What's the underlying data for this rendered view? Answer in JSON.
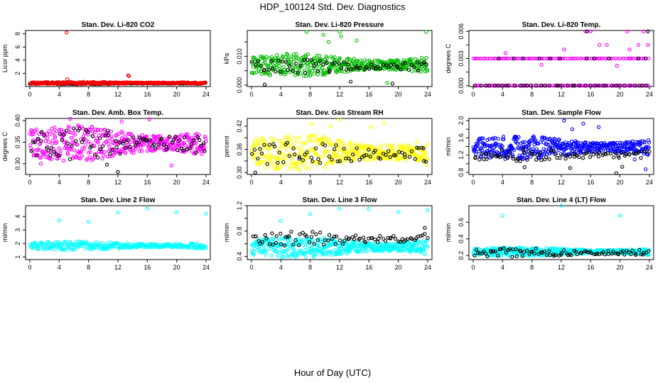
{
  "figure": {
    "title": "HDP_100124  Std. Dev. Diagnostics",
    "xlabel": "Hour of Day (UTC)"
  },
  "chart_data": [
    {
      "type": "scatter",
      "title": "Stan. Dev. Li-820 CO2",
      "ylabel": "Licor ppm",
      "xlim": [
        0,
        24
      ],
      "ylim": [
        0,
        8.5
      ],
      "xticks": [
        0,
        4,
        8,
        12,
        16,
        20,
        24
      ],
      "yticks": [
        2,
        4,
        6,
        8
      ],
      "yticklabels": [
        "2",
        "4",
        "6",
        "8"
      ],
      "series": [
        {
          "name": "black",
          "color": "#000000",
          "band": [
            0.35,
            0.6
          ],
          "n": 180,
          "x": [],
          "y": []
        },
        {
          "name": "red",
          "color": "#ff0000",
          "band": [
            0.35,
            0.75
          ],
          "n": 220,
          "x": [
            5.0,
            5.1,
            13.4,
            13.5
          ],
          "y": [
            8.2,
            1.1,
            1.7,
            1.6
          ]
        }
      ]
    },
    {
      "type": "scatter",
      "title": "Stan. Dev. Li-820 Pressure",
      "ylabel": "kPa",
      "xlim": [
        0,
        24
      ],
      "ylim": [
        -0.0005,
        0.019
      ],
      "xticks": [
        0,
        4,
        8,
        12,
        16,
        20,
        24
      ],
      "yticks": [
        0.0,
        0.005,
        0.01,
        0.015
      ],
      "yticklabels": [
        "0.000",
        "",
        "0.010",
        ""
      ],
      "series": [
        {
          "name": "green",
          "color": "#00bb00",
          "band": [
            0.003,
            0.011
          ],
          "n": 420,
          "x": [
            7.5,
            9.8,
            12.0,
            12.2,
            23.8,
            10.5,
            14.3,
            18.5
          ],
          "y": [
            0.0185,
            0.0175,
            0.0185,
            0.017,
            0.0185,
            0.015,
            0.0155,
            0.0008
          ]
        },
        {
          "name": "black",
          "color": "#000000",
          "band": [
            0.004,
            0.009
          ],
          "n": 70,
          "x": [
            1.8,
            13.5,
            19.2
          ],
          "y": [
            0.0002,
            0.0012,
            0.0005
          ]
        }
      ]
    },
    {
      "type": "scatter",
      "title": "Stan. Dev. Li-820 Temp.",
      "ylabel": "degrees C",
      "xlim": [
        0,
        24
      ],
      "ylim": [
        -0.0001,
        0.0061
      ],
      "xticks": [
        0,
        4,
        8,
        12,
        16,
        20,
        24
      ],
      "yticks": [
        0.0,
        0.0015,
        0.003,
        0.0045,
        0.006
      ],
      "yticklabels": [
        "0.000",
        "",
        "0.003",
        "",
        "0.006"
      ],
      "levels": [
        0.0,
        0.003,
        0.006
      ],
      "series": [
        {
          "name": "magenta-low",
          "color": "#ff00ff",
          "level": 0.0,
          "n": 90,
          "x": [],
          "y": []
        },
        {
          "name": "magenta-mid",
          "color": "#ff00ff",
          "level": 0.003,
          "n": 95,
          "x": [],
          "y": []
        },
        {
          "name": "magenta-high",
          "color": "#ff00ff",
          "x": [
            15.3,
            16.0,
            17.2,
            18.2,
            21.0,
            22.5,
            23.2,
            23.8,
            4.4,
            9.3,
            19.6,
            12.4,
            21.3
          ],
          "y": [
            0.006,
            0.006,
            0.0045,
            0.0045,
            0.006,
            0.0045,
            0.006,
            0.0045,
            0.0036,
            0.0023,
            0.0022,
            0.004,
            0.004
          ]
        },
        {
          "name": "black-low",
          "color": "#000000",
          "level": 0.0,
          "n": 40,
          "x": [],
          "y": []
        },
        {
          "name": "black-mid",
          "color": "#000000",
          "x": [
            3.5,
            5.5,
            6.8,
            9.0,
            10.5,
            11.8,
            15.5,
            16.5,
            18.5,
            22.5,
            23.5
          ],
          "y": [
            0.003,
            0.003,
            0.003,
            0.003,
            0.003,
            0.003,
            0.003,
            0.003,
            0.003,
            0.003,
            0.003
          ]
        },
        {
          "name": "black-high",
          "color": "#000000",
          "x": [
            15.5,
            23.8
          ],
          "y": [
            0.006,
            0.006
          ]
        }
      ]
    },
    {
      "type": "scatter",
      "title": "Stan. Dev. Amb. Box Temp.",
      "ylabel": "degrees C",
      "xlim": [
        0,
        24
      ],
      "ylim": [
        0.275,
        0.405
      ],
      "xticks": [
        0,
        4,
        8,
        12,
        16,
        20,
        24
      ],
      "yticks": [
        0.3,
        0.35,
        0.4
      ],
      "yticklabels": [
        "0.30",
        "0.35",
        "0.40"
      ],
      "series": [
        {
          "name": "magenta",
          "color": "#ff00ff",
          "band": [
            0.305,
            0.39
          ],
          "n": 420,
          "x": [
            5.5,
            12.5,
            16.3,
            1.5,
            19.3
          ],
          "y": [
            0.404,
            0.398,
            0.403,
            0.3,
            0.296
          ]
        },
        {
          "name": "black",
          "color": "#000000",
          "band": [
            0.31,
            0.385
          ],
          "n": 90,
          "x": [
            12.0,
            10.5
          ],
          "y": [
            0.281,
            0.298
          ]
        }
      ]
    },
    {
      "type": "scatter",
      "title": "Stan. Dev. Gas Stream RH",
      "ylabel": "percent",
      "xlim": [
        0,
        24
      ],
      "ylim": [
        0.295,
        0.44
      ],
      "xticks": [
        0,
        4,
        8,
        12,
        16,
        20,
        24
      ],
      "yticks": [
        0.3,
        0.33,
        0.36,
        0.39,
        0.42
      ],
      "yticklabels": [
        "0.30",
        "",
        "0.36",
        "",
        "0.42"
      ],
      "series": [
        {
          "name": "yellow",
          "color": "#ffff00",
          "band": [
            0.305,
            0.4
          ],
          "n": 420,
          "x": [
            12.0,
            8.2,
            10.8,
            16.3,
            18.0
          ],
          "y": [
            0.438,
            0.425,
            0.42,
            0.418,
            0.428
          ]
        },
        {
          "name": "black",
          "color": "#000000",
          "band": [
            0.315,
            0.38
          ],
          "n": 70,
          "x": [
            0.5,
            23.5
          ],
          "y": [
            0.3,
            0.33
          ]
        }
      ]
    },
    {
      "type": "scatter",
      "title": "Stan. Dev. Sample Flow",
      "ylabel": "ml/min",
      "xlim": [
        0,
        24
      ],
      "ylim": [
        0.75,
        2.05
      ],
      "xticks": [
        0,
        4,
        8,
        12,
        16,
        20,
        24
      ],
      "yticks": [
        0.8,
        1.0,
        1.2,
        1.4,
        1.6,
        1.8,
        2.0
      ],
      "yticklabels": [
        "0.8",
        "",
        "1.2",
        "",
        "1.6",
        "",
        "2.0"
      ],
      "series": [
        {
          "name": "blue",
          "color": "#0000ff",
          "band": [
            1.1,
            1.65
          ],
          "n": 460,
          "x": [
            12.4,
            15.0,
            13.5,
            17.1,
            23.5,
            22.0
          ],
          "y": [
            2.0,
            1.93,
            1.8,
            1.85,
            0.87,
            1.1
          ]
        },
        {
          "name": "black",
          "color": "#000000",
          "band": [
            1.05,
            1.35
          ],
          "n": 80,
          "x": [
            7.0,
            13.2,
            19.5,
            20.3
          ],
          "y": [
            0.92,
            0.9,
            0.78,
            0.93
          ]
        }
      ]
    },
    {
      "type": "scatter",
      "title": "Stan. Dev. Line 2 Flow",
      "ylabel": "ml/min",
      "xlim": [
        0,
        24
      ],
      "ylim": [
        0.8,
        4.8
      ],
      "xticks": [
        0,
        4,
        8,
        12,
        16,
        20,
        24
      ],
      "yticks": [
        1,
        2,
        3,
        4
      ],
      "yticklabels": [
        "1",
        "2",
        "3",
        "4"
      ],
      "series": [
        {
          "name": "cyan-upper",
          "color": "#00ffff",
          "band": [
            1.5,
            2.15
          ],
          "n": 300,
          "x": [
            4.0,
            8.0,
            12.0,
            16.0,
            20.0,
            24.0
          ],
          "y": [
            3.7,
            3.6,
            4.3,
            4.6,
            4.3,
            4.2
          ]
        },
        {
          "name": "cyan-lower",
          "color": "#00ffff",
          "band": [
            0.52,
            0.72
          ],
          "n": 200,
          "x": [],
          "y": []
        },
        {
          "name": "black",
          "color": "#000000",
          "band": [
            0.52,
            0.72
          ],
          "n": 110,
          "x": [],
          "y": []
        }
      ]
    },
    {
      "type": "scatter",
      "title": "Stan. Dev. Line 3 Flow",
      "ylabel": "ml/min",
      "xlim": [
        0,
        24
      ],
      "ylim": [
        0.35,
        1.2
      ],
      "xticks": [
        0,
        4,
        8,
        12,
        16,
        20,
        24
      ],
      "yticks": [
        0.4,
        0.6,
        0.8,
        1.0,
        1.2
      ],
      "yticklabels": [
        "0.4",
        "",
        "0.8",
        "",
        "1.2"
      ],
      "series": [
        {
          "name": "cyan",
          "color": "#00ffff",
          "band": [
            0.38,
            0.72
          ],
          "n": 440,
          "x": [
            4.0,
            8.0,
            12.0,
            16.0,
            20.0,
            24.0
          ],
          "y": [
            0.96,
            1.07,
            1.15,
            1.15,
            1.1,
            1.13
          ]
        },
        {
          "name": "black",
          "color": "#000000",
          "band": [
            0.55,
            0.8
          ],
          "n": 85,
          "x": [
            23.6
          ],
          "y": [
            0.85
          ]
        }
      ]
    },
    {
      "type": "scatter",
      "title": "Stan. Dev. Line 4 (LT) Flow",
      "ylabel": "ml/min",
      "xlim": [
        0,
        24
      ],
      "ylim": [
        0.15,
        0.8
      ],
      "xticks": [
        0,
        4,
        8,
        12,
        16,
        20,
        24
      ],
      "yticks": [
        0.2,
        0.4,
        0.6
      ],
      "yticklabels": [
        "0.2",
        "0.4",
        "0.6"
      ],
      "series": [
        {
          "name": "cyan",
          "color": "#00ffff",
          "band": [
            0.19,
            0.3
          ],
          "n": 420,
          "x": [
            4.0,
            12.0,
            20.0
          ],
          "y": [
            0.68,
            0.8,
            0.68
          ]
        },
        {
          "name": "black",
          "color": "#000000",
          "band": [
            0.18,
            0.29
          ],
          "n": 90,
          "x": [],
          "y": []
        }
      ]
    }
  ]
}
